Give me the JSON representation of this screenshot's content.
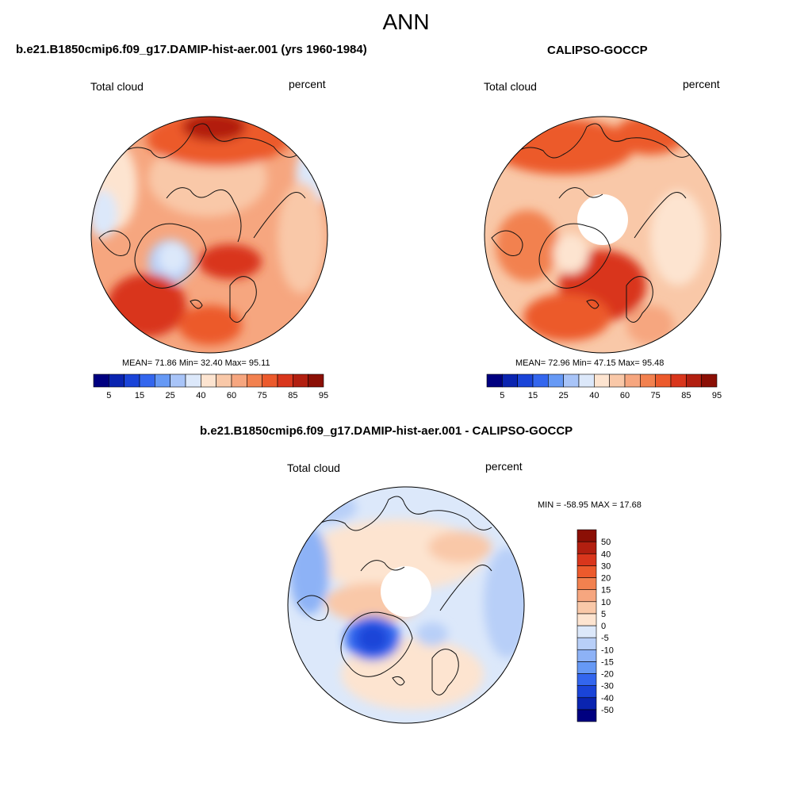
{
  "title": "ANN",
  "panels": [
    {
      "title": "b.e21.B1850cmip6.f09_g17.DAMIP-hist-aer.001 (yrs 1960-1984)",
      "variable": "Total cloud",
      "units": "percent",
      "stats": "MEAN=  71.86  Min=  32.40  Max=  95.11"
    },
    {
      "title": "CALIPSO-GOCCP",
      "variable": "Total cloud",
      "units": "percent",
      "stats": "MEAN=  72.96  Min=  47.15  Max=  95.48"
    },
    {
      "title": "b.e21.B1850cmip6.f09_g17.DAMIP-hist-aer.001 - CALIPSO-GOCCP",
      "variable": "Total cloud",
      "units": "percent",
      "stats": "MIN = -58.95 MAX =  17.68"
    }
  ],
  "colorbar_abs": {
    "colors": [
      "#000080",
      "#0a24b0",
      "#1a44d8",
      "#3366ee",
      "#6699f5",
      "#a8c4f8",
      "#dce8fa",
      "#fde4d0",
      "#f9c8a8",
      "#f6a67f",
      "#f2814f",
      "#ec5a2c",
      "#d9361c",
      "#b21f10",
      "#8b0f05"
    ],
    "labels": [
      "5",
      "15",
      "25",
      "40",
      "60",
      "75",
      "85",
      "95"
    ]
  },
  "colorbar_diff": {
    "colors": [
      "#000080",
      "#0a24b0",
      "#1a44d8",
      "#3366ee",
      "#6699f5",
      "#8db2f6",
      "#b8cff8",
      "#dce8fa",
      "#fde4d0",
      "#f9c8a8",
      "#f6a67f",
      "#f2814f",
      "#ec5a2c",
      "#d9361c",
      "#b21f10",
      "#8b0f05"
    ],
    "labels": [
      "-50",
      "-40",
      "-30",
      "-20",
      "-15",
      "-10",
      "-5",
      "0",
      "5",
      "10",
      "15",
      "20",
      "30",
      "40",
      "50"
    ]
  }
}
